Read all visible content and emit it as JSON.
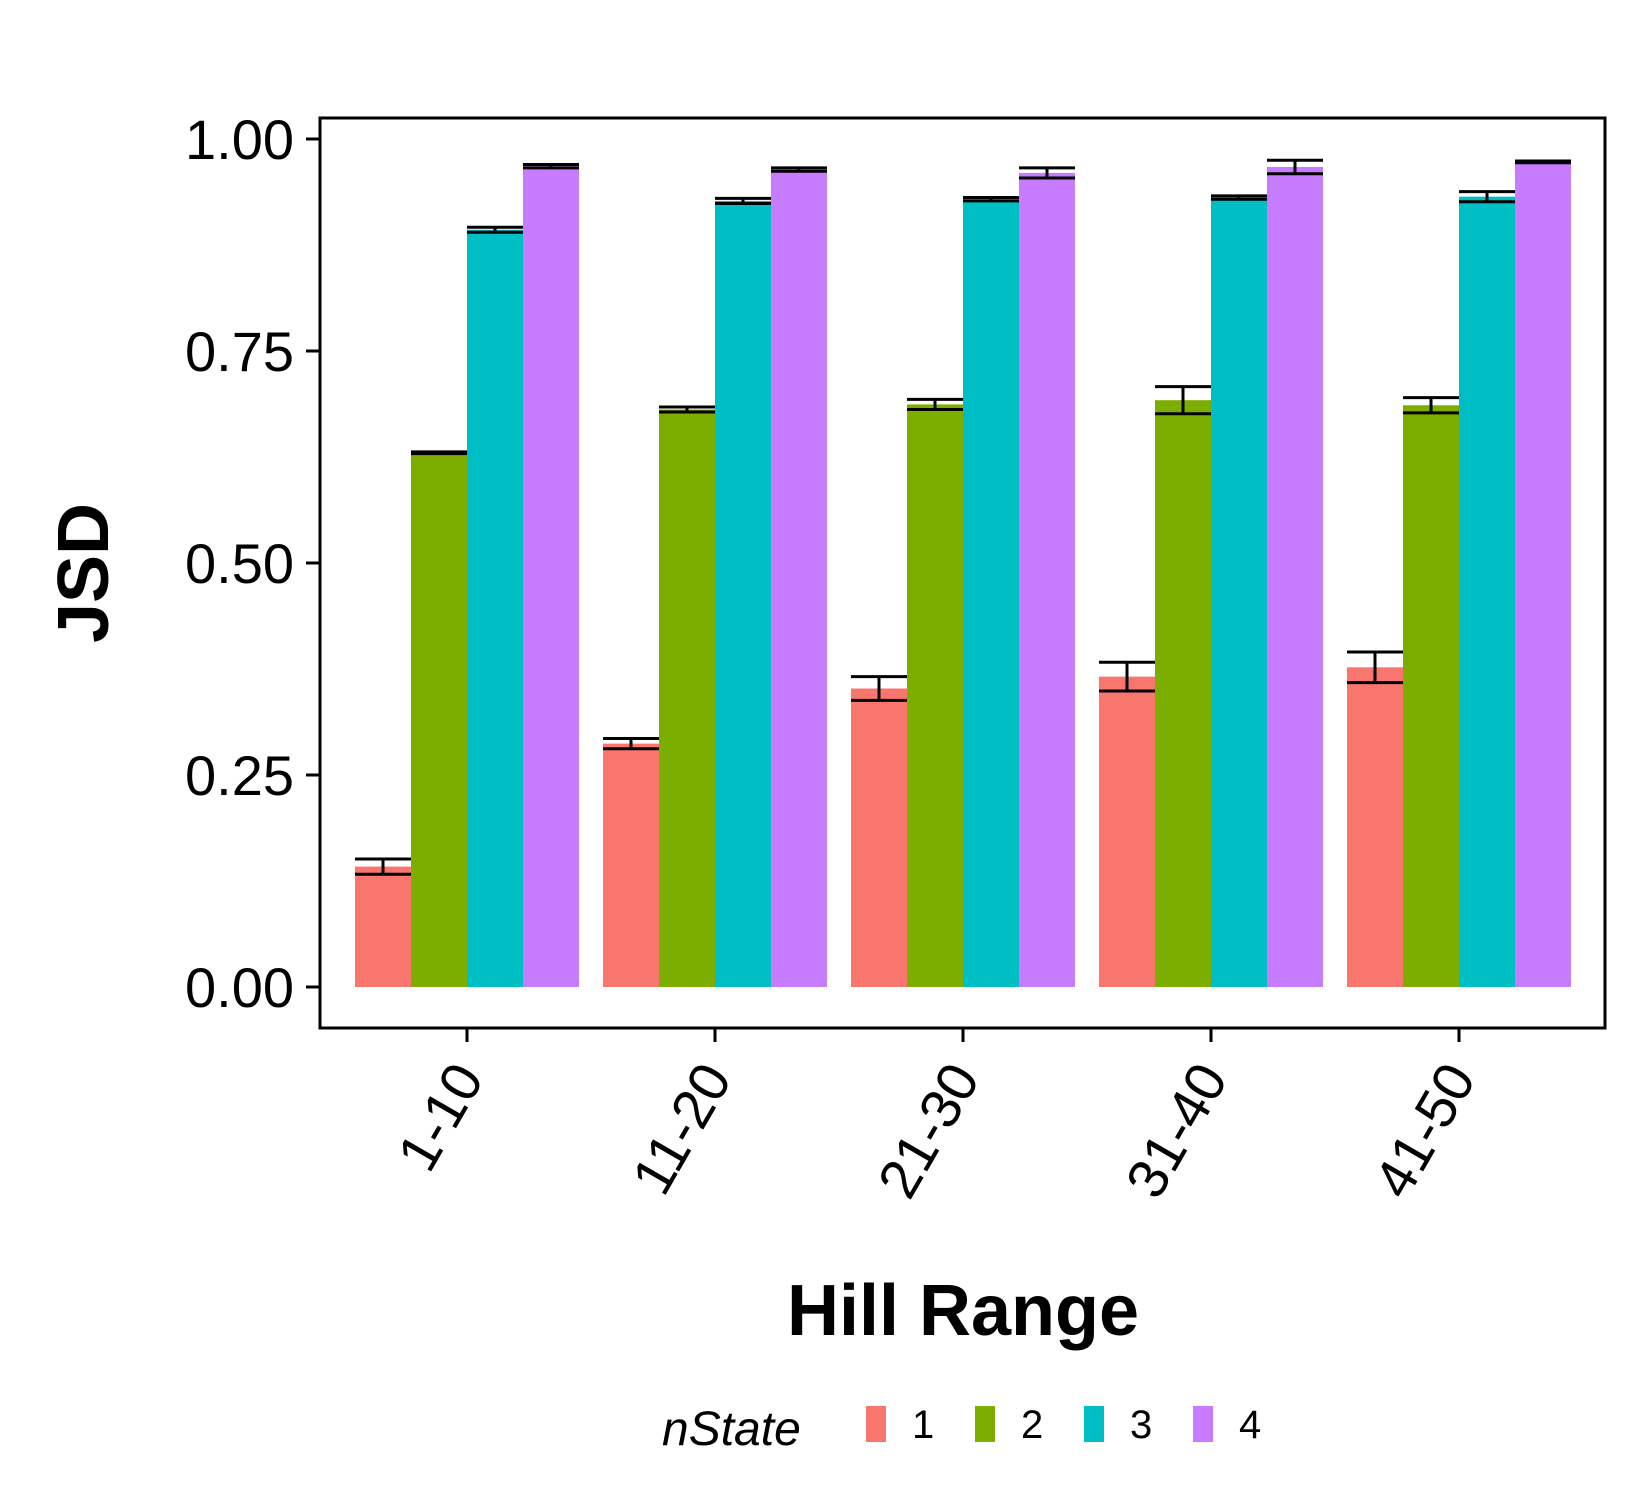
{
  "chart_data": {
    "type": "bar",
    "xlabel": "Hill Range",
    "ylabel": "JSD",
    "categories": [
      "1-10",
      "11-20",
      "21-30",
      "31-40",
      "41-50"
    ],
    "ylim": [
      0,
      1.0
    ],
    "yticks": [
      "0.00",
      "0.25",
      "0.50",
      "0.75",
      "1.00"
    ],
    "grid": false,
    "legend": {
      "title": "nState",
      "position": "bottom",
      "entries": [
        "1",
        "2",
        "3",
        "4"
      ]
    },
    "series": [
      {
        "name": "1",
        "color": "#F8766D",
        "values": [
          0.142,
          0.287,
          0.352,
          0.366,
          0.377
        ],
        "errors": [
          0.009,
          0.006,
          0.014,
          0.017,
          0.018
        ]
      },
      {
        "name": "2",
        "color": "#7CAE00",
        "values": [
          0.63,
          0.681,
          0.687,
          0.692,
          0.686
        ],
        "errors": [
          0.001,
          0.003,
          0.006,
          0.016,
          0.009
        ]
      },
      {
        "name": "3",
        "color": "#00BFC4",
        "values": [
          0.893,
          0.927,
          0.929,
          0.931,
          0.932
        ],
        "errors": [
          0.003,
          0.003,
          0.002,
          0.002,
          0.006
        ]
      },
      {
        "name": "4",
        "color": "#C77CFF",
        "values": [
          0.968,
          0.964,
          0.96,
          0.967,
          0.973
        ],
        "errors": [
          0.002,
          0.002,
          0.006,
          0.008,
          0.001
        ]
      }
    ]
  }
}
